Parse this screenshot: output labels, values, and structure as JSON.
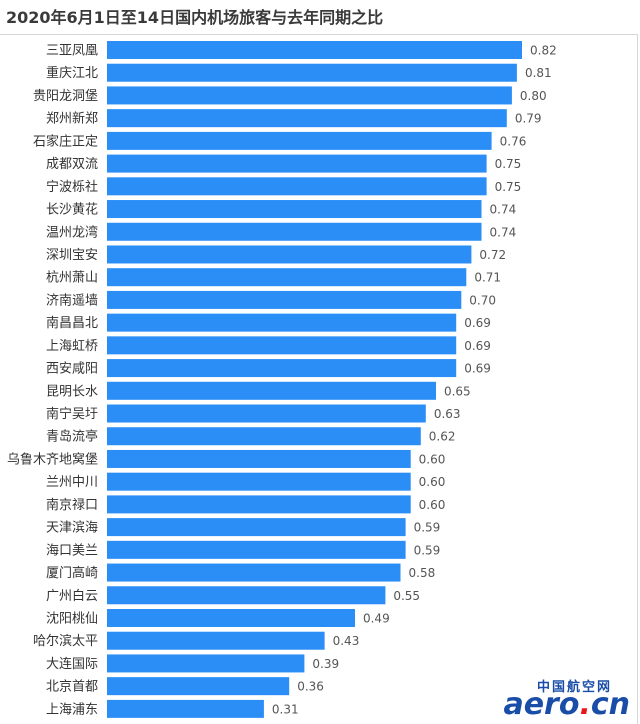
{
  "title": "2020年6月1日至14日国内机场旅客与去年同期之比",
  "colors": {
    "bar": "#2b8df6",
    "label": "#333333",
    "value": "#555555"
  },
  "watermark": {
    "cn": "中国航空网",
    "en": "aero",
    "dot": ".",
    "tld": "cn"
  },
  "chart_data": {
    "type": "bar",
    "orientation": "horizontal",
    "title": "2020年6月1日至14日国内机场旅客与去年同期之比",
    "xlabel": "",
    "ylabel": "",
    "xlim": [
      0,
      0.82
    ],
    "grid": false,
    "categories": [
      "三亚凤凰",
      "重庆江北",
      "贵阳龙洞堡",
      "郑州新郑",
      "石家庄正定",
      "成都双流",
      "宁波栎社",
      "长沙黄花",
      "温州龙湾",
      "深圳宝安",
      "杭州萧山",
      "济南遥墙",
      "南昌昌北",
      "上海虹桥",
      "西安咸阳",
      "昆明长水",
      "南宁吴圩",
      "青岛流亭",
      "乌鲁木齐地窝堡",
      "兰州中川",
      "南京禄口",
      "天津滨海",
      "海口美兰",
      "厦门高崎",
      "广州白云",
      "沈阳桃仙",
      "哈尔滨太平",
      "大连国际",
      "北京首都",
      "上海浦东"
    ],
    "values": [
      0.82,
      0.81,
      0.8,
      0.79,
      0.76,
      0.75,
      0.75,
      0.74,
      0.74,
      0.72,
      0.71,
      0.7,
      0.69,
      0.69,
      0.69,
      0.65,
      0.63,
      0.62,
      0.6,
      0.6,
      0.6,
      0.59,
      0.59,
      0.58,
      0.55,
      0.49,
      0.43,
      0.39,
      0.36,
      0.31
    ],
    "value_labels": [
      "0.82",
      "0.81",
      "0.80",
      "0.79",
      "0.76",
      "0.75",
      "0.75",
      "0.74",
      "0.74",
      "0.72",
      "0.71",
      "0.70",
      "0.69",
      "0.69",
      "0.69",
      "0.65",
      "0.63",
      "0.62",
      "0.60",
      "0.60",
      "0.60",
      "0.59",
      "0.59",
      "0.58",
      "0.55",
      "0.49",
      "0.43",
      "0.39",
      "0.36",
      "0.31"
    ]
  }
}
